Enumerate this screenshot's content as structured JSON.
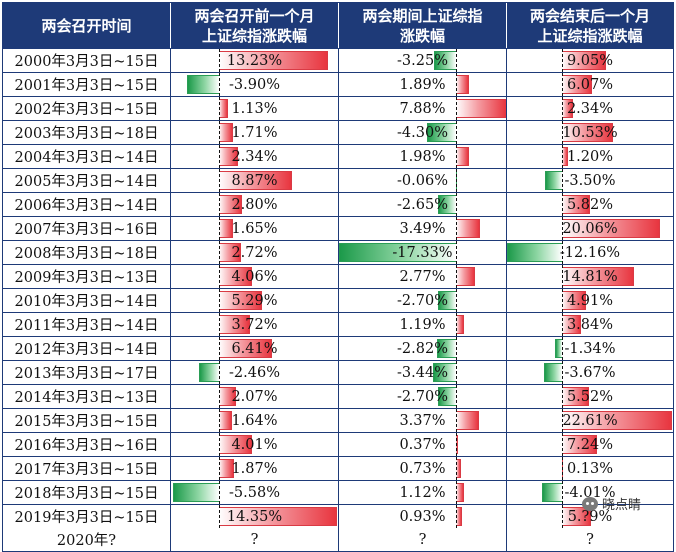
{
  "headers": {
    "period": "两会召开时间",
    "before": "两会召开前一个月\n上证综指涨跌幅",
    "during": "两会期间上证综指\n涨跌幅",
    "after": "两会结束后一个月\n上证综指涨跌幅"
  },
  "colors": {
    "header_bg": "#1e3a78",
    "positive_bar": "#e8353f",
    "negative_bar": "#1c9a4a"
  },
  "rows": [
    {
      "period": "2000年3月3日~15日",
      "before": 13.23,
      "before_text": "13.23%",
      "during": -3.25,
      "during_text": "-3.25%",
      "after": 9.05,
      "after_text": "9.05%"
    },
    {
      "period": "2001年3月3日~15日",
      "before": -3.9,
      "before_text": "-3.90%",
      "during": 1.89,
      "during_text": "1.89%",
      "after": 6.07,
      "after_text": "6.07%"
    },
    {
      "period": "2002年3月3日~15日",
      "before": 1.13,
      "before_text": "1.13%",
      "during": 7.88,
      "during_text": "7.88%",
      "after": 2.34,
      "after_text": "2.34%"
    },
    {
      "period": "2003年3月3日~18日",
      "before": 1.71,
      "before_text": "1.71%",
      "during": -4.3,
      "during_text": "-4.30%",
      "after": 10.53,
      "after_text": "10.53%"
    },
    {
      "period": "2004年3月3日~14日",
      "before": 2.34,
      "before_text": "2.34%",
      "during": 1.98,
      "during_text": "1.98%",
      "after": 1.2,
      "after_text": "1.20%"
    },
    {
      "period": "2005年3月3日~14日",
      "before": 8.87,
      "before_text": "8.87%",
      "during": -0.06,
      "during_text": "-0.06%",
      "after": -3.5,
      "after_text": "-3.50%"
    },
    {
      "period": "2006年3月3日~14日",
      "before": 2.8,
      "before_text": "2.80%",
      "during": -2.65,
      "during_text": "-2.65%",
      "after": 5.82,
      "after_text": "5.82%"
    },
    {
      "period": "2007年3月3日~16日",
      "before": 1.65,
      "before_text": "1.65%",
      "during": 3.49,
      "during_text": "3.49%",
      "after": 20.06,
      "after_text": "20.06%"
    },
    {
      "period": "2008年3月3日~18日",
      "before": 2.72,
      "before_text": "2.72%",
      "during": -17.33,
      "during_text": "-17.33%",
      "after": -12.16,
      "after_text": "-12.16%"
    },
    {
      "period": "2009年3月3日~13日",
      "before": 4.06,
      "before_text": "4.06%",
      "during": 2.77,
      "during_text": "2.77%",
      "after": 14.81,
      "after_text": "14.81%"
    },
    {
      "period": "2010年3月3日~14日",
      "before": 5.29,
      "before_text": "5.29%",
      "during": -2.7,
      "during_text": "-2.70%",
      "after": 4.91,
      "after_text": "4.91%"
    },
    {
      "period": "2011年3月3日~14日",
      "before": 3.72,
      "before_text": "3.72%",
      "during": 1.19,
      "during_text": "1.19%",
      "after": 3.84,
      "after_text": "3.84%"
    },
    {
      "period": "2012年3月3日~14日",
      "before": 6.41,
      "before_text": "6.41%",
      "during": -2.82,
      "during_text": "-2.82%",
      "after": -1.34,
      "after_text": "-1.34%"
    },
    {
      "period": "2013年3月3日~17日",
      "before": -2.46,
      "before_text": "-2.46%",
      "during": -3.44,
      "during_text": "-3.44%",
      "after": -3.67,
      "after_text": "-3.67%"
    },
    {
      "period": "2014年3月3日~13日",
      "before": 2.07,
      "before_text": "2.07%",
      "during": -2.7,
      "during_text": "-2.70%",
      "after": 5.52,
      "after_text": "5.52%"
    },
    {
      "period": "2015年3月3日~15日",
      "before": 1.64,
      "before_text": "1.64%",
      "during": 3.37,
      "during_text": "3.37%",
      "after": 22.61,
      "after_text": "22.61%"
    },
    {
      "period": "2016年3月3日~16日",
      "before": 4.01,
      "before_text": "4.01%",
      "during": 0.37,
      "during_text": "0.37%",
      "after": 7.24,
      "after_text": "7.24%"
    },
    {
      "period": "2017年3月3日~15日",
      "before": 1.87,
      "before_text": "1.87%",
      "during": 0.73,
      "during_text": "0.73%",
      "after": 0.13,
      "after_text": "0.13%"
    },
    {
      "period": "2018年3月3日~15日",
      "before": -5.58,
      "before_text": "-5.58%",
      "during": 1.12,
      "during_text": "1.12%",
      "after": -4.01,
      "after_text": "-4.01%"
    },
    {
      "period": "2019年3月3日~15日",
      "before": 14.35,
      "before_text": "14.35%",
      "during": 0.93,
      "during_text": "0.93%",
      "after": 5.89,
      "after_text": "5.?9%"
    }
  ],
  "last_row": {
    "period": "2020年?",
    "before": "?",
    "during": "?",
    "after": "?"
  },
  "watermark": "晓点睛"
}
